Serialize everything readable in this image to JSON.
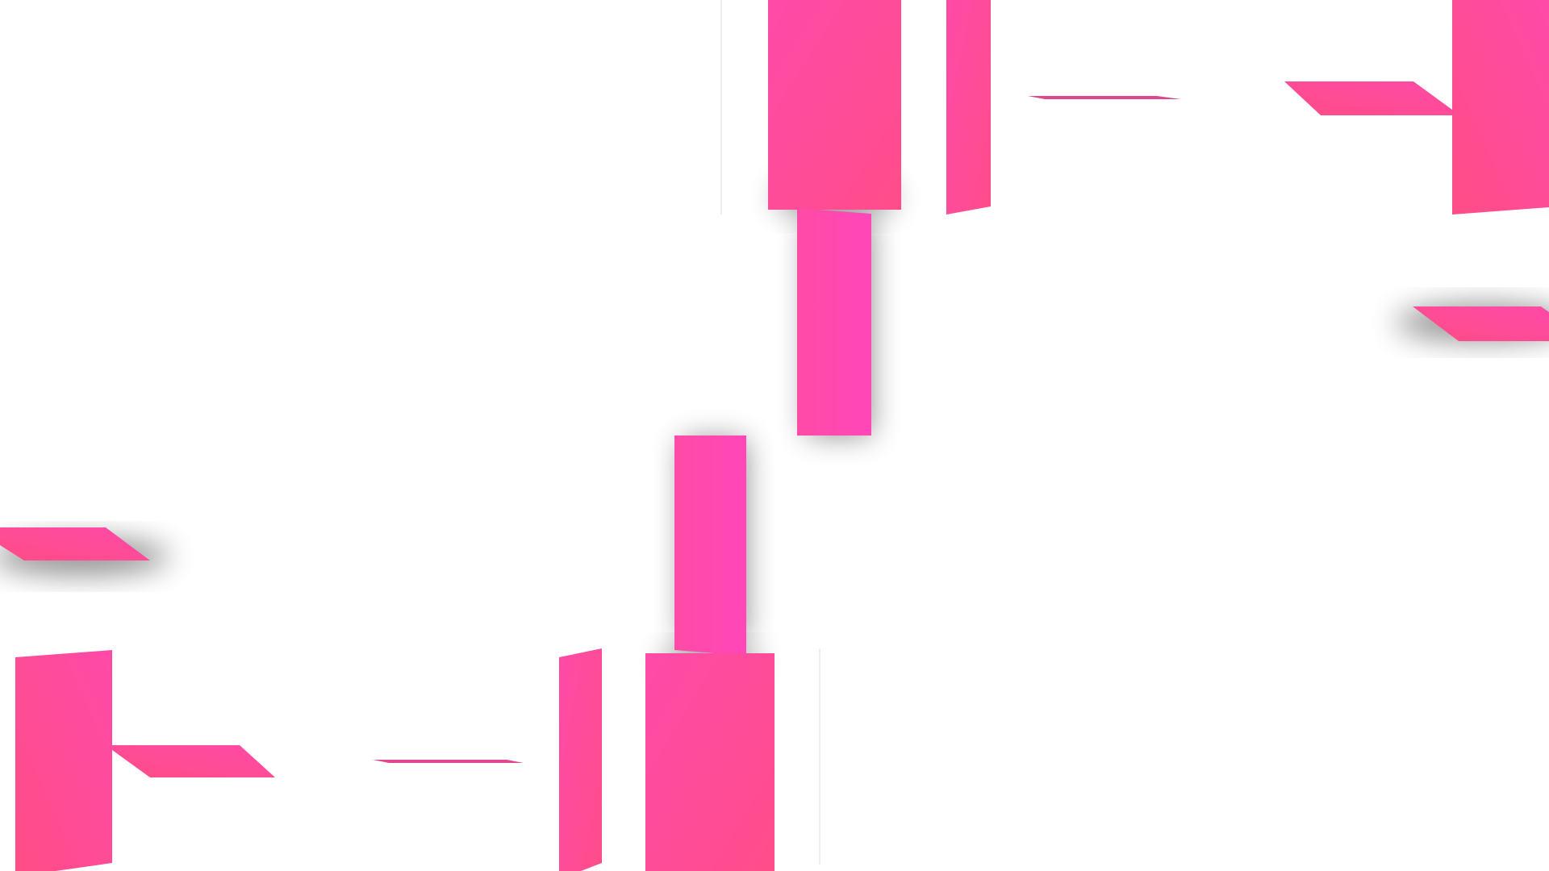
{
  "scene": {
    "description": "",
    "colors": {
      "background": "#ffffff",
      "pink_light": "#ff47b8",
      "pink_mid": "#ff4aa6",
      "pink_deep": "#ff4d8a",
      "hairline": "#dcdcdc",
      "shadow": "#000000"
    }
  }
}
